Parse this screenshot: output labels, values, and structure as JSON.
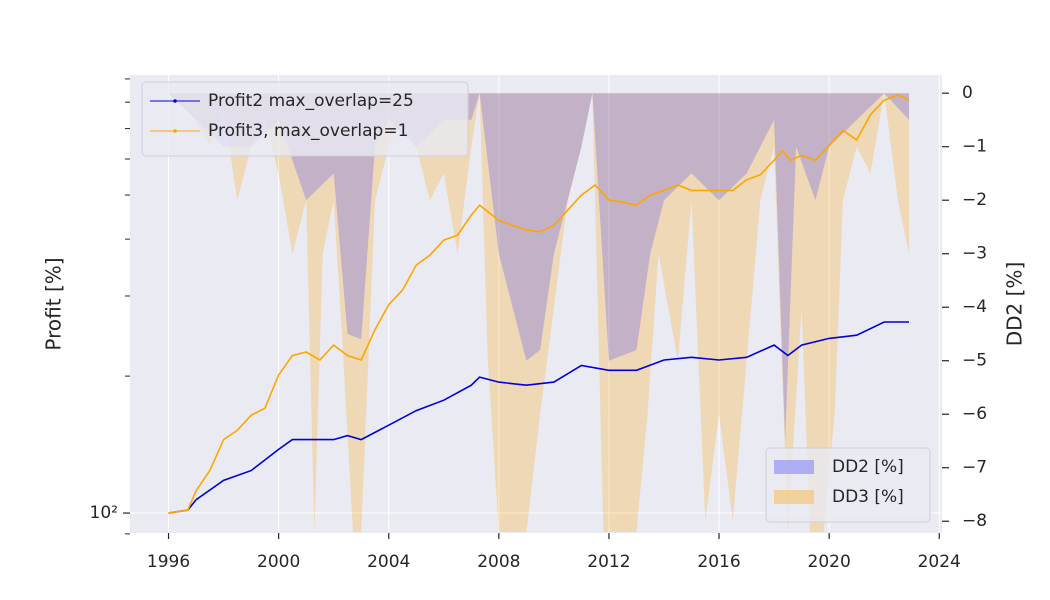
{
  "chart_data": {
    "type": "line",
    "ylabel": "Profit [%]",
    "y2label": "DD2 [%]",
    "yscale": "log",
    "xlim": [
      1994.6,
      2024.1
    ],
    "xticks": [
      1996,
      2000,
      2004,
      2008,
      2012,
      2016,
      2020,
      2024
    ],
    "ylim": [
      90.4,
      918
    ],
    "yticks": [
      {
        "value": 100,
        "label": "10²"
      }
    ],
    "yminorticks": [
      90,
      200,
      300,
      400,
      500,
      600,
      700,
      800,
      900
    ],
    "y2lim": [
      -8.22,
      0.34
    ],
    "y2ticks": [
      {
        "value": 0,
        "label": "0"
      },
      {
        "value": -1,
        "label": "−1"
      },
      {
        "value": -2,
        "label": "−2"
      },
      {
        "value": -3,
        "label": "−3"
      },
      {
        "value": -4,
        "label": "−4"
      },
      {
        "value": -5,
        "label": "−5"
      },
      {
        "value": -6,
        "label": "−6"
      },
      {
        "value": -7,
        "label": "−7"
      },
      {
        "value": -8,
        "label": "−8"
      }
    ],
    "grid": true,
    "legend": "upper left",
    "legend2": "lower right",
    "series": [
      {
        "name": "DD3 [%]",
        "color": "#ffa500",
        "alpha": 0.25,
        "fill": true,
        "axis": "y2",
        "x": [
          1996,
          1997,
          1997.5,
          1998,
          1998.5,
          1999,
          1999.5,
          2000,
          2000.5,
          2001,
          2001.3,
          2001.6,
          2002,
          2002.3,
          2002.7,
          2003,
          2003.5,
          2004,
          2004.5,
          2005,
          2005.5,
          2006,
          2006.5,
          2007,
          2007.3,
          2007.6,
          2008,
          2009,
          2009.5,
          2010,
          2010.5,
          2011,
          2011.4,
          2011.8,
          2012.5,
          2013,
          2013.4,
          2013.8,
          2014.5,
          2015,
          2015.5,
          2016,
          2016.5,
          2017,
          2017.5,
          2018,
          2018.5,
          2019,
          2019.3,
          2019.8,
          2020.2,
          2020.5,
          2021,
          2021.5,
          2022,
          2022.5,
          2022.9
        ],
        "values": [
          0,
          -0.5,
          -1,
          -0.3,
          -2,
          -1,
          -0.5,
          -1.5,
          -3,
          -2,
          -8.2,
          -3,
          -2,
          -4.5,
          -8.2,
          -8.2,
          -2,
          -1,
          -0.5,
          -1,
          -2,
          -1.5,
          -3,
          -1,
          0,
          -5,
          -8.2,
          -8.2,
          -6,
          -4,
          -2,
          -1,
          0,
          -8.2,
          -8.2,
          -8.2,
          -6,
          -3,
          -5,
          -2,
          -8,
          -6,
          -8,
          -5,
          -2,
          -1,
          -8.2,
          -4,
          -8.2,
          -8.2,
          -6,
          -2,
          -1,
          -1.5,
          0,
          -2,
          -3
        ]
      },
      {
        "name": "DD2 [%]",
        "color": "#4040ff",
        "alpha": 0.25,
        "fill": true,
        "axis": "y2",
        "x": [
          1996,
          1997,
          1998,
          1999,
          2000,
          2001,
          2002,
          2002.5,
          2003,
          2003.5,
          2004,
          2005,
          2006,
          2007,
          2007.3,
          2008,
          2009,
          2009.5,
          2010,
          2011,
          2011.4,
          2012,
          2013,
          2013.5,
          2014,
          2015,
          2016,
          2017,
          2018,
          2018.4,
          2018.8,
          2019.5,
          2020,
          2021,
          2022,
          2022.9
        ],
        "values": [
          0,
          -0.5,
          -1,
          -1,
          -0.5,
          -2,
          -1.5,
          -4.5,
          -4.6,
          -1,
          -0.5,
          -1,
          -0.5,
          -0.5,
          0,
          -3,
          -5,
          -4.8,
          -3,
          -1,
          0,
          -5,
          -4.8,
          -3,
          -2,
          -1.5,
          -2,
          -1.5,
          -0.5,
          -6.5,
          -1,
          -2,
          -1,
          -0.5,
          0,
          -0.5
        ]
      },
      {
        "name": "Profit2 max_overlap=25",
        "color": "#0000dd",
        "axis": "y",
        "x": [
          1996,
          1996.7,
          1997,
          1998,
          1999,
          2000,
          2000.5,
          2001,
          2002,
          2002.5,
          2003,
          2004,
          2005,
          2006,
          2007,
          2007.3,
          2008,
          2009,
          2010,
          2011,
          2012,
          2013,
          2014,
          2015,
          2016,
          2017,
          2018,
          2018.5,
          2019,
          2020,
          2021,
          2022,
          2022.9
        ],
        "values": [
          100,
          101.5,
          107,
          118,
          124,
          138,
          145,
          145,
          145,
          148,
          145,
          156,
          168,
          177,
          191,
          199,
          194,
          191,
          194,
          211,
          206,
          206,
          217,
          220,
          217,
          220,
          234,
          222,
          234,
          242,
          246,
          263,
          263
        ]
      },
      {
        "name": "Profit3, max_overlap=1",
        "color": "#ffa500",
        "axis": "y",
        "x": [
          1996,
          1996.7,
          1997,
          1997.5,
          1998,
          1998.5,
          1999,
          1999.5,
          2000,
          2000.5,
          2001,
          2001.5,
          2002,
          2002.5,
          2003,
          2003.5,
          2004,
          2004.5,
          2005,
          2005.5,
          2006,
          2006.5,
          2007,
          2007.3,
          2008,
          2008.5,
          2009,
          2009.5,
          2010,
          2010.5,
          2011,
          2011.5,
          2012,
          2012.5,
          2013,
          2013.5,
          2014,
          2014.5,
          2015,
          2015.5,
          2016,
          2016.5,
          2017,
          2017.5,
          2018,
          2018.3,
          2018.6,
          2019,
          2019.5,
          2020,
          2020.5,
          2021,
          2021.5,
          2022,
          2022.5,
          2022.9
        ],
        "values": [
          100,
          101.5,
          112,
          124,
          145,
          152,
          164,
          170,
          201,
          222,
          226,
          217,
          234,
          222,
          217,
          253,
          287,
          309,
          351,
          369,
          398,
          408,
          452,
          475,
          440,
          429,
          419,
          415,
          429,
          463,
          500,
          526,
          488,
          482,
          475,
          500,
          512,
          526,
          512,
          512,
          512,
          512,
          540,
          554,
          596,
          626,
          596,
          611,
          596,
          643,
          694,
          661,
          751,
          808,
          830,
          808
        ]
      }
    ]
  }
}
